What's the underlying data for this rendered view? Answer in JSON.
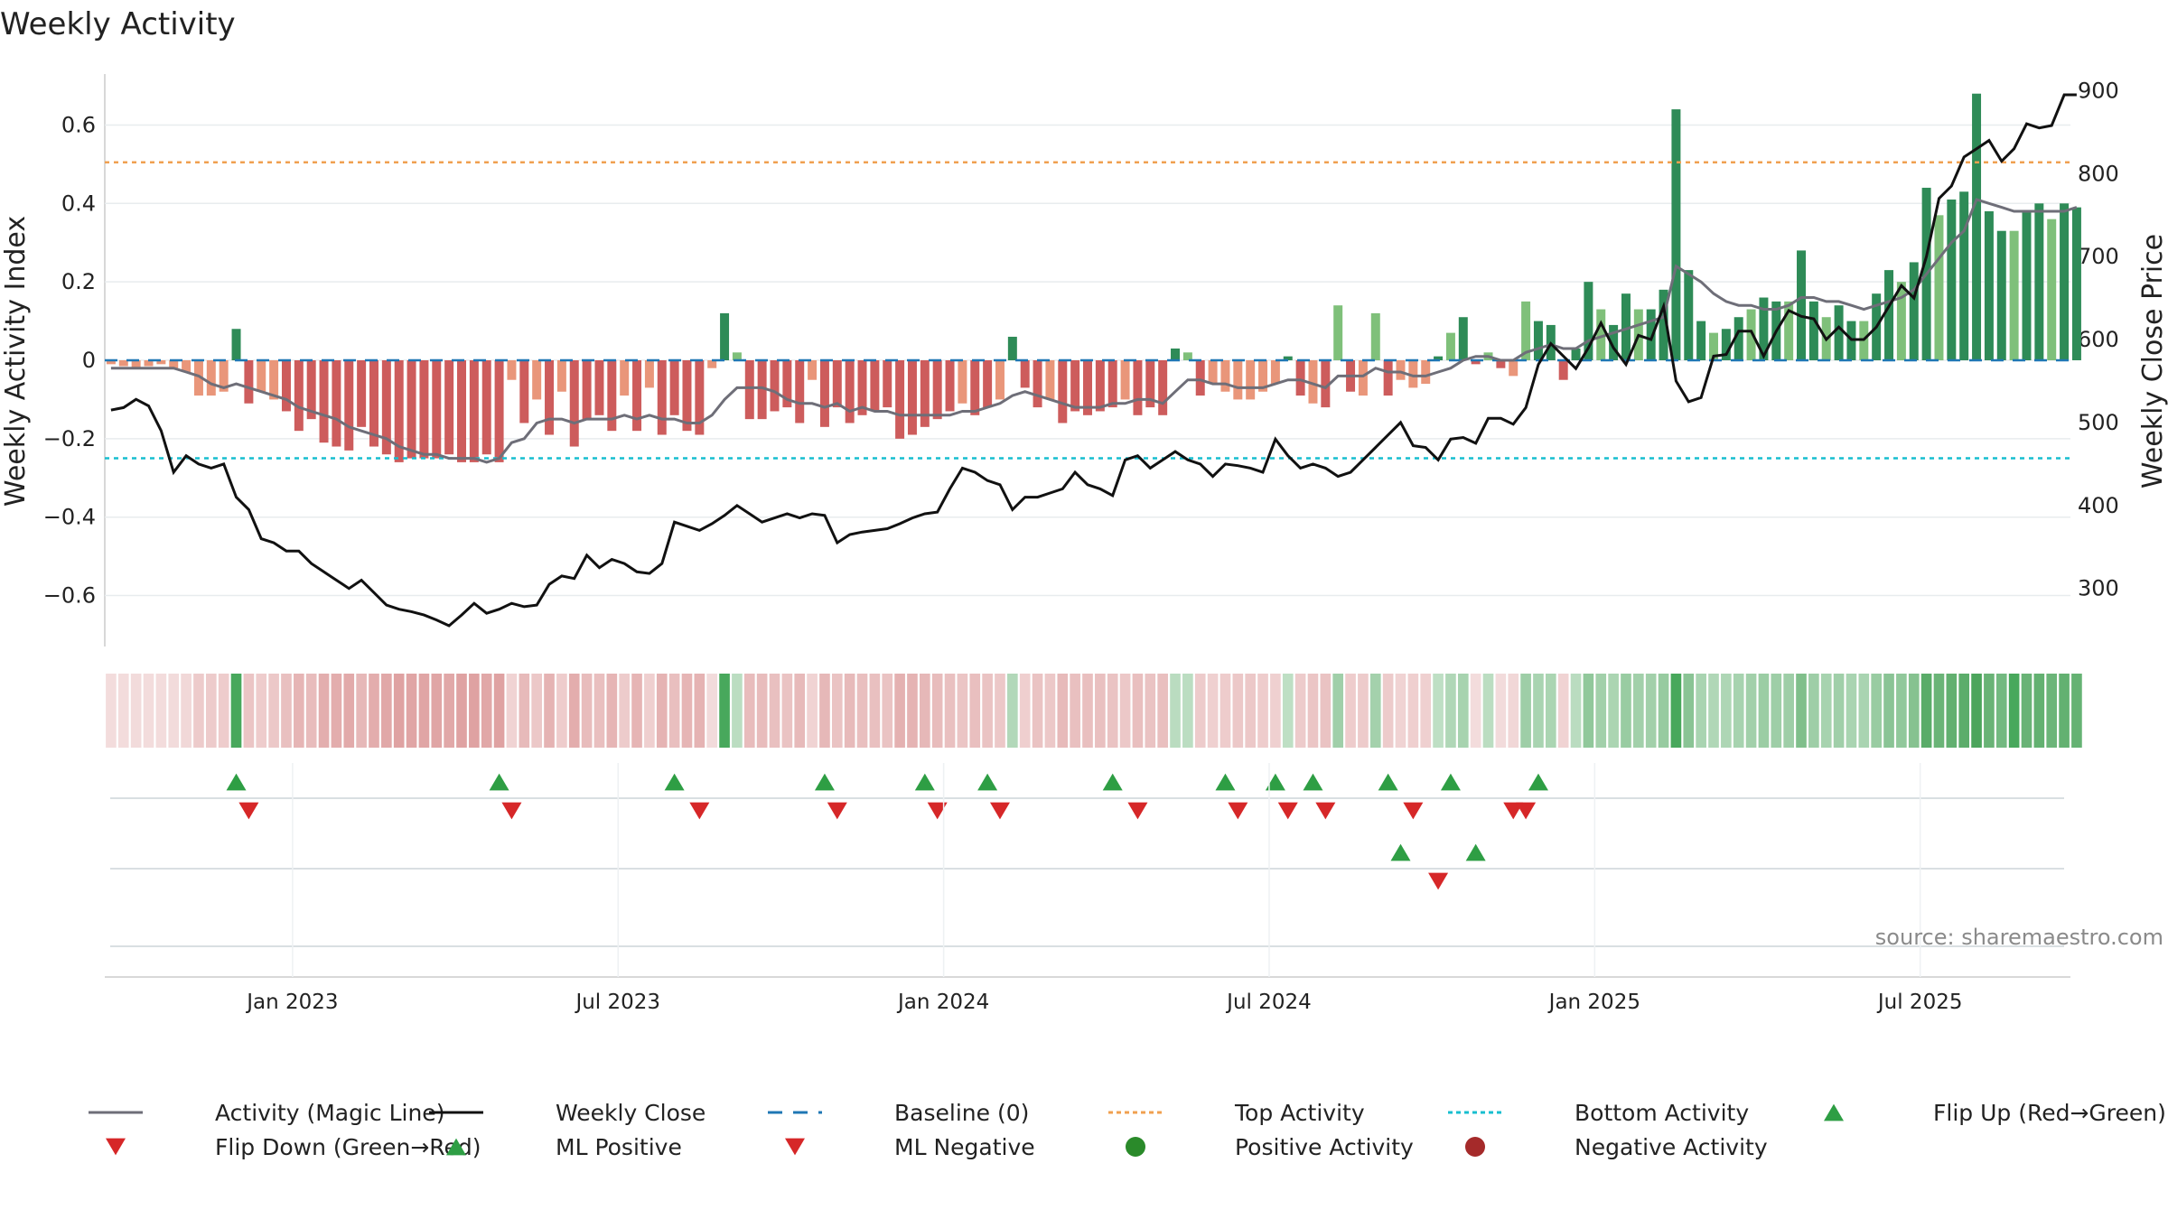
{
  "title": "Weekly Activity",
  "source": "source: sharemaestro.com",
  "colors": {
    "pos_strong": "#2e8b57",
    "pos_light": "#7fc07a",
    "neg_strong": "#cd5c5c",
    "neg_light": "#e9967a",
    "magic_line": "#6e6e78",
    "close_line": "#111111",
    "baseline": "#1f77b4",
    "top_line": "#f0a050",
    "bottom_line": "#17becf",
    "flip_up": "#2e9e44",
    "flip_down": "#d62728",
    "pos_dot": "#2a8a2a",
    "neg_dot": "#a52a2a"
  },
  "chart_data": {
    "type": "bar",
    "title": "Weekly Activity",
    "ylabel": "Weekly Activity Index",
    "y2label": "Weekly Close Price",
    "ylim": [
      -0.73,
      0.73
    ],
    "y2lim": [
      230,
      920
    ],
    "yticks": [
      0.6,
      0.4,
      0.2,
      0,
      -0.2,
      -0.4,
      -0.6
    ],
    "ytick_labels": [
      "0.6",
      "0.4",
      "0.2",
      "0",
      "−0.2",
      "−0.4",
      "−0.6"
    ],
    "y2ticks": [
      900,
      800,
      700,
      600,
      500,
      400,
      300
    ],
    "y2tick_labels": [
      "900",
      "800",
      "700",
      "600",
      "500",
      "400",
      "300"
    ],
    "xrange": [
      0,
      157
    ],
    "xticks": [
      15,
      41,
      67,
      93,
      119,
      145
    ],
    "xtick_labels": [
      "Jan 2023",
      "Jul 2023",
      "Jan 2024",
      "Jul 2024",
      "Jan 2025",
      "Jul 2025"
    ],
    "top_activity": 0.505,
    "bottom_activity": -0.25,
    "activity": [
      -0.01,
      -0.015,
      -0.02,
      -0.015,
      -0.01,
      -0.02,
      -0.03,
      -0.09,
      -0.09,
      -0.08,
      0.08,
      -0.11,
      -0.08,
      -0.1,
      -0.13,
      -0.18,
      -0.15,
      -0.21,
      -0.22,
      -0.23,
      -0.17,
      -0.22,
      -0.24,
      -0.26,
      -0.25,
      -0.25,
      -0.25,
      -0.24,
      -0.26,
      -0.26,
      -0.24,
      -0.26,
      -0.05,
      -0.16,
      -0.1,
      -0.19,
      -0.08,
      -0.22,
      -0.15,
      -0.14,
      -0.18,
      -0.09,
      -0.18,
      -0.07,
      -0.19,
      -0.14,
      -0.18,
      -0.19,
      -0.02,
      0.12,
      0.02,
      -0.15,
      -0.15,
      -0.13,
      -0.12,
      -0.16,
      -0.05,
      -0.17,
      -0.12,
      -0.16,
      -0.14,
      -0.13,
      -0.12,
      -0.2,
      -0.19,
      -0.17,
      -0.15,
      -0.13,
      -0.11,
      -0.14,
      -0.12,
      -0.1,
      0.06,
      -0.07,
      -0.12,
      -0.1,
      -0.16,
      -0.13,
      -0.14,
      -0.13,
      -0.12,
      -0.1,
      -0.14,
      -0.12,
      -0.14,
      0.03,
      0.02,
      -0.09,
      -0.06,
      -0.08,
      -0.1,
      -0.1,
      -0.08,
      -0.06,
      0.01,
      -0.09,
      -0.11,
      -0.12,
      0.14,
      -0.08,
      -0.09,
      0.12,
      -0.09,
      -0.05,
      -0.07,
      -0.06,
      0.01,
      0.07,
      0.11,
      -0.01,
      0.02,
      -0.02,
      -0.04,
      0.15,
      0.1,
      0.09,
      -0.05,
      0.03,
      0.2,
      0.13,
      0.09,
      0.17,
      0.13,
      0.13,
      0.18,
      0.64,
      0.23,
      0.1,
      0.07,
      0.08,
      0.11,
      0.13,
      0.16,
      0.15,
      0.15,
      0.28,
      0.15,
      0.11,
      0.14,
      0.1,
      0.1,
      0.17,
      0.23,
      0.2,
      0.25,
      0.44,
      0.37,
      0.41,
      0.43,
      0.68,
      0.38,
      0.33,
      0.33,
      0.38,
      0.4,
      0.36,
      0.4,
      0.39
    ],
    "magic_line": [
      -0.02,
      -0.02,
      -0.02,
      -0.02,
      -0.02,
      -0.02,
      -0.03,
      -0.04,
      -0.06,
      -0.07,
      -0.06,
      -0.07,
      -0.08,
      -0.09,
      -0.1,
      -0.12,
      -0.13,
      -0.14,
      -0.15,
      -0.17,
      -0.18,
      -0.19,
      -0.2,
      -0.22,
      -0.23,
      -0.24,
      -0.24,
      -0.25,
      -0.25,
      -0.25,
      -0.26,
      -0.25,
      -0.21,
      -0.2,
      -0.16,
      -0.15,
      -0.15,
      -0.16,
      -0.15,
      -0.15,
      -0.15,
      -0.14,
      -0.15,
      -0.14,
      -0.15,
      -0.15,
      -0.16,
      -0.16,
      -0.14,
      -0.1,
      -0.07,
      -0.07,
      -0.07,
      -0.08,
      -0.1,
      -0.11,
      -0.11,
      -0.12,
      -0.11,
      -0.13,
      -0.12,
      -0.13,
      -0.13,
      -0.14,
      -0.14,
      -0.14,
      -0.14,
      -0.14,
      -0.13,
      -0.13,
      -0.12,
      -0.11,
      -0.09,
      -0.08,
      -0.09,
      -0.1,
      -0.11,
      -0.12,
      -0.12,
      -0.12,
      -0.11,
      -0.11,
      -0.1,
      -0.1,
      -0.11,
      -0.08,
      -0.05,
      -0.05,
      -0.06,
      -0.06,
      -0.07,
      -0.07,
      -0.07,
      -0.06,
      -0.05,
      -0.05,
      -0.06,
      -0.07,
      -0.04,
      -0.04,
      -0.04,
      -0.02,
      -0.03,
      -0.03,
      -0.04,
      -0.04,
      -0.03,
      -0.02,
      0.0,
      0.01,
      0.01,
      0.0,
      0.0,
      0.02,
      0.03,
      0.04,
      0.03,
      0.03,
      0.05,
      0.06,
      0.07,
      0.08,
      0.09,
      0.1,
      0.11,
      0.24,
      0.22,
      0.2,
      0.17,
      0.15,
      0.14,
      0.14,
      0.13,
      0.13,
      0.14,
      0.16,
      0.16,
      0.15,
      0.15,
      0.14,
      0.13,
      0.14,
      0.15,
      0.16,
      0.18,
      0.22,
      0.26,
      0.3,
      0.33,
      0.41,
      0.4,
      0.39,
      0.38,
      0.38,
      0.38,
      0.38,
      0.38,
      0.39
    ],
    "close": [
      515,
      518,
      528,
      520,
      490,
      440,
      460,
      450,
      445,
      450,
      410,
      395,
      360,
      355,
      345,
      345,
      330,
      320,
      310,
      300,
      310,
      295,
      280,
      275,
      272,
      268,
      262,
      255,
      268,
      282,
      270,
      275,
      282,
      278,
      280,
      305,
      315,
      312,
      340,
      325,
      335,
      330,
      320,
      318,
      330,
      380,
      375,
      370,
      378,
      388,
      400,
      390,
      380,
      385,
      390,
      385,
      390,
      388,
      355,
      365,
      368,
      370,
      372,
      378,
      385,
      390,
      392,
      420,
      445,
      440,
      430,
      425,
      395,
      410,
      410,
      415,
      420,
      440,
      425,
      420,
      412,
      455,
      460,
      445,
      455,
      465,
      455,
      450,
      435,
      450,
      448,
      445,
      440,
      480,
      460,
      445,
      450,
      445,
      435,
      440,
      455,
      470,
      485,
      500,
      472,
      470,
      455,
      480,
      482,
      475,
      505,
      505,
      498,
      518,
      570,
      595,
      580,
      565,
      590,
      620,
      590,
      570,
      605,
      600,
      640,
      550,
      525,
      530,
      580,
      582,
      610,
      610,
      580,
      610,
      635,
      628,
      625,
      600,
      615,
      600,
      600,
      615,
      640,
      665,
      650,
      700,
      770,
      785,
      820,
      830,
      840,
      815,
      830,
      860,
      855,
      858,
      895,
      895
    ],
    "heat_bright": [
      10,
      49,
      125,
      152
    ],
    "flip_up": [
      10,
      31,
      45,
      57,
      65,
      70,
      80,
      89,
      93,
      96,
      102,
      107,
      114
    ],
    "flip_down": [
      11,
      32,
      47,
      58,
      66,
      71,
      82,
      90,
      94,
      97,
      104,
      112,
      113
    ],
    "ml_up": [
      103,
      109
    ],
    "ml_down": [
      106
    ]
  },
  "legend": [
    {
      "label": "Activity (Magic Line)",
      "symbol": "line-grey"
    },
    {
      "label": "Weekly Close",
      "symbol": "line-black"
    },
    {
      "label": "Baseline (0)",
      "symbol": "dash-blue"
    },
    {
      "label": "Top Activity",
      "symbol": "dot-orange"
    },
    {
      "label": "Bottom Activity",
      "symbol": "dot-cyan"
    },
    {
      "label": "Flip Up (Red→Green)",
      "symbol": "tri-up-green"
    },
    {
      "label": "Flip Down (Green→Red)",
      "symbol": "tri-down-red"
    },
    {
      "label": "ML Positive",
      "symbol": "tri-up-green"
    },
    {
      "label": "ML Negative",
      "symbol": "tri-down-red"
    },
    {
      "label": "Positive Activity",
      "symbol": "circle-green"
    },
    {
      "label": "Negative Activity",
      "symbol": "circle-darkred"
    }
  ]
}
